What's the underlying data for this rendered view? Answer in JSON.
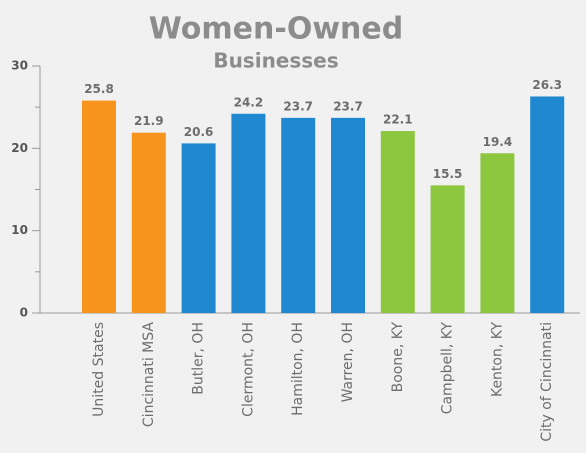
{
  "chart_data": {
    "type": "bar",
    "title": "Women-Owned",
    "subtitle": "Businesses",
    "categories": [
      "United States",
      "Cincinnati MSA",
      "Butler, OH",
      "Clermont, OH",
      "Hamilton, OH",
      "Warren, OH",
      "Boone, KY",
      "Campbell, KY",
      "Kenton, KY",
      "City of Cincinnati"
    ],
    "values": [
      25.8,
      21.9,
      20.6,
      24.2,
      23.7,
      23.7,
      22.1,
      15.5,
      19.4,
      26.3
    ],
    "colors": [
      "#f7941d",
      "#f7941d",
      "#1f88d0",
      "#1f88d0",
      "#1f88d0",
      "#1f88d0",
      "#8dc63f",
      "#8dc63f",
      "#8dc63f",
      "#1f88d0"
    ],
    "ylim": [
      0,
      30
    ],
    "yticks": [
      0,
      10,
      20,
      30
    ],
    "minor_yticks": [
      5,
      15,
      25
    ]
  }
}
